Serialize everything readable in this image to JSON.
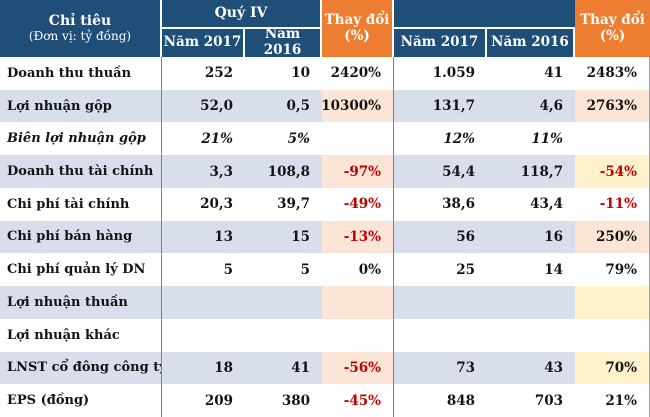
{
  "header": {
    "indicator_title": "Chỉ tiêu",
    "indicator_unit": "(Đơn vị: tỷ đồng)",
    "group_quarter": "Quý IV",
    "group_year": "",
    "sub_2017": "Năm 2017",
    "sub_2016": "Năm 2016",
    "change_label": "Thay đổi",
    "change_unit": "(%)"
  },
  "colors": {
    "navy": "#1f4e79",
    "orange": "#ed7d31",
    "band_blue": "#d9deec",
    "peach": "#fbe5d6",
    "yellow": "#fff2cc",
    "negative_red": "#c00000"
  },
  "rows": [
    {
      "label": "Doanh thu thuần",
      "italic": false,
      "band": "white",
      "q4_2017": "252",
      "q4_2016": "10",
      "q4_change": "2420%",
      "q4_change_bg": "white",
      "year_2017": "1.059",
      "year_2016": "41",
      "year_change": "2483%",
      "year_change_bg": "white"
    },
    {
      "label": "Lợi nhuận gộp",
      "italic": false,
      "band": "blue",
      "q4_2017": "52,0",
      "q4_2016": "0,5",
      "q4_change": "10300%",
      "q4_change_bg": "peach",
      "year_2017": "131,7",
      "year_2016": "4,6",
      "year_change": "2763%",
      "year_change_bg": "peach"
    },
    {
      "label": "Biên lợi nhuận gộp",
      "italic": true,
      "band": "white",
      "q4_2017": "21%",
      "q4_2016": "5%",
      "q4_change": "",
      "q4_change_bg": "white",
      "year_2017": "12%",
      "year_2016": "11%",
      "year_change": "",
      "year_change_bg": "white"
    },
    {
      "label": "Doanh thu tài chính",
      "italic": false,
      "band": "blue",
      "q4_2017": "3,3",
      "q4_2016": "108,8",
      "q4_change": "-97%",
      "q4_change_bg": "peach",
      "year_2017": "54,4",
      "year_2016": "118,7",
      "year_change": "-54%",
      "year_change_bg": "yellow"
    },
    {
      "label": "Chi phí tài chính",
      "italic": false,
      "band": "white",
      "q4_2017": "20,3",
      "q4_2016": "39,7",
      "q4_change": "-49%",
      "q4_change_bg": "white",
      "year_2017": "38,6",
      "year_2016": "43,4",
      "year_change": "-11%",
      "year_change_bg": "white"
    },
    {
      "label": "Chi phí bán hàng",
      "italic": false,
      "band": "blue",
      "q4_2017": "13",
      "q4_2016": "15",
      "q4_change": "-13%",
      "q4_change_bg": "peach",
      "year_2017": "56",
      "year_2016": "16",
      "year_change": "250%",
      "year_change_bg": "peach"
    },
    {
      "label": "Chi phí quản lý DN",
      "italic": false,
      "band": "white",
      "q4_2017": "5",
      "q4_2016": "5",
      "q4_change": "0%",
      "q4_change_bg": "white",
      "year_2017": "25",
      "year_2016": "14",
      "year_change": "79%",
      "year_change_bg": "white"
    },
    {
      "label": "Lợi nhuận thuần",
      "italic": false,
      "band": "blue",
      "q4_2017": "",
      "q4_2016": "",
      "q4_change": "",
      "q4_change_bg": "peach",
      "year_2017": "",
      "year_2016": "",
      "year_change": "",
      "year_change_bg": "yellow"
    },
    {
      "label": "Lợi nhuận khác",
      "italic": false,
      "band": "white",
      "q4_2017": "",
      "q4_2016": "",
      "q4_change": "",
      "q4_change_bg": "white",
      "year_2017": "",
      "year_2016": "",
      "year_change": "",
      "year_change_bg": "white"
    },
    {
      "label": "LNST cổ đông công ty mẹ",
      "italic": false,
      "band": "blue",
      "q4_2017": "18",
      "q4_2016": "41",
      "q4_change": "-56%",
      "q4_change_bg": "peach",
      "year_2017": "73",
      "year_2016": "43",
      "year_change": "70%",
      "year_change_bg": "yellow"
    },
    {
      "label": "EPS (đồng)",
      "italic": false,
      "band": "white",
      "q4_2017": "209",
      "q4_2016": "380",
      "q4_change": "-45%",
      "q4_change_bg": "white",
      "year_2017": "848",
      "year_2016": "703",
      "year_change": "21%",
      "year_change_bg": "white"
    }
  ]
}
